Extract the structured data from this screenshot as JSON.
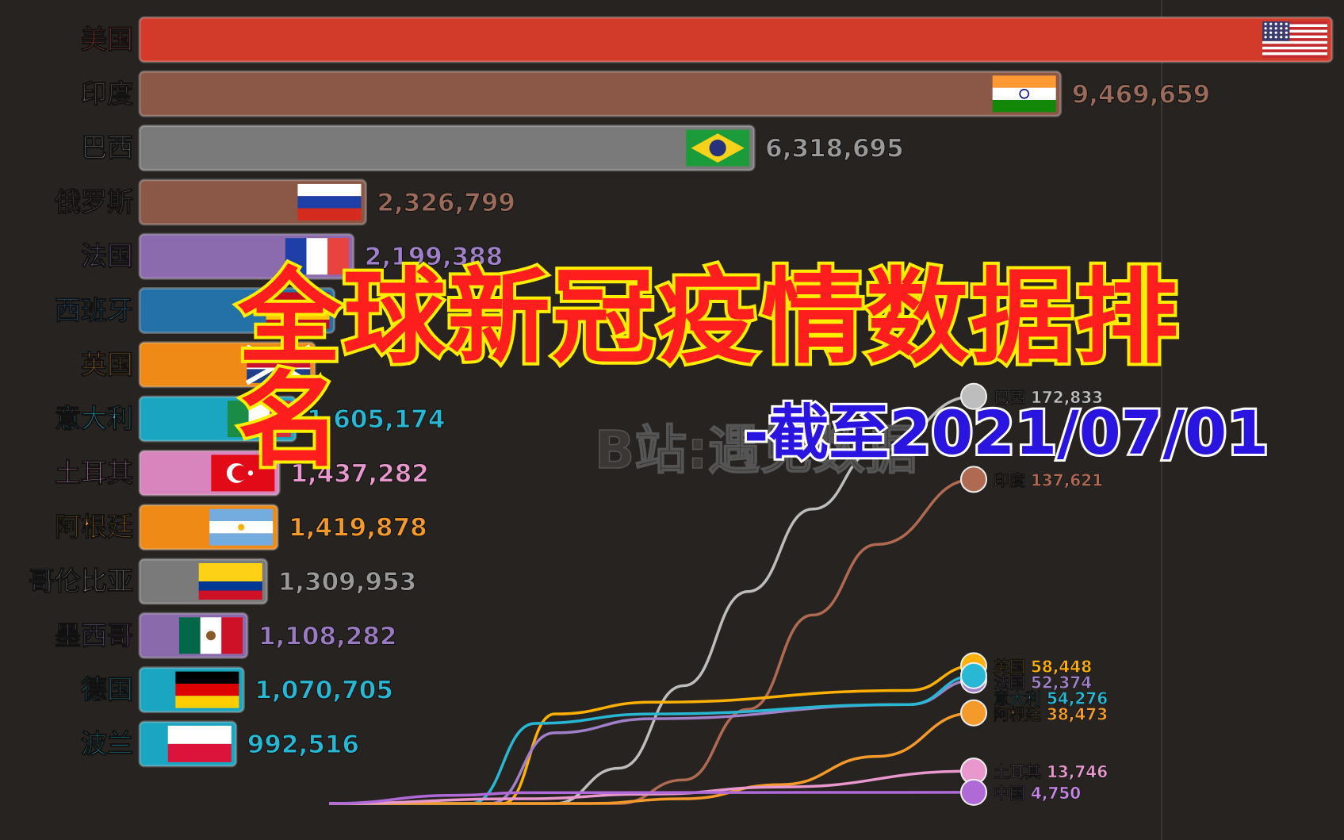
{
  "overlay": {
    "title": "全球新冠疫情数据排名",
    "subtitle": "-截至2021/07/01",
    "watermark": "B站:遇见数据"
  },
  "chart_data": [
    {
      "type": "bar",
      "orientation": "horizontal",
      "title": "",
      "xlabel": "",
      "ylabel": "",
      "categories": [
        "美国",
        "印度",
        "巴西",
        "俄罗斯",
        "法国",
        "西班牙",
        "英国",
        "意大利",
        "土耳其",
        "阿根廷",
        "哥伦比亚",
        "墨西哥",
        "德国",
        "波兰"
      ],
      "values": [
        null,
        9469659,
        6318695,
        2326799,
        2199388,
        null,
        null,
        1605174,
        1437282,
        1419878,
        1309953,
        1108282,
        1070705,
        992516
      ],
      "value_labels": [
        "",
        "9,469,659",
        "6,318,695",
        "2,326,799",
        "2,199,388",
        "",
        "",
        "1,605,174",
        "1,437,282",
        "1,419,878",
        "1,309,953",
        "1,108,282",
        "1,070,705",
        "992,516"
      ],
      "bar_colors": [
        "#d23a2a",
        "#8b5746",
        "#7a7a7a",
        "#8b5746",
        "#8c6aae",
        "#2471a8",
        "#f08a16",
        "#1aa6c1",
        "#d985bd",
        "#f08a16",
        "#7a7a7a",
        "#8a6aaa",
        "#1aa6c1",
        "#1aa6c1"
      ],
      "label_colors": [
        "#e8503c",
        "#9a6a5a",
        "#9a9a9a",
        "#9a6a5a",
        "#a080c8",
        "#3a8ed0",
        "#f39a2a",
        "#28b8d4",
        "#e898cc",
        "#f39a2a",
        "#9a9a9a",
        "#9a7ac0",
        "#28b8d4",
        "#28b8d4"
      ],
      "flags": [
        "us-flag-icon",
        "india-flag-icon",
        "brazil-flag-icon",
        "russia-flag-icon",
        "france-flag-icon",
        "spain-flag-icon",
        "uk-flag-icon",
        "italy-flag-icon",
        "turkey-flag-icon",
        "argentina-flag-icon",
        "colombia-flag-icon",
        "mexico-flag-icon",
        "germany-flag-icon",
        "poland-flag-icon"
      ]
    },
    {
      "type": "line",
      "title": "",
      "xlabel": "",
      "ylabel": "",
      "grid": false,
      "series": [
        {
          "name": "巴西",
          "end_label": "巴西 172,833",
          "color": "#bdbdbd",
          "label_color": "#bdbdbd",
          "x": [
            0,
            0.35,
            0.45,
            0.55,
            0.65,
            0.75,
            0.85,
            1.0
          ],
          "y": [
            0,
            0,
            15000,
            50000,
            90000,
            125000,
            150000,
            172833
          ]
        },
        {
          "name": "印度",
          "end_label": "印度 137,621",
          "color": "#b06a52",
          "label_color": "#b06a52",
          "x": [
            0,
            0.45,
            0.55,
            0.65,
            0.75,
            0.85,
            1.0
          ],
          "y": [
            0,
            0,
            10000,
            40000,
            80000,
            110000,
            137621
          ]
        },
        {
          "name": "英国",
          "end_label": "英国 58,448",
          "color": "#ffb000",
          "label_color": "#ffb000",
          "x": [
            0,
            0.27,
            0.35,
            0.5,
            0.9,
            1.0
          ],
          "y": [
            0,
            0,
            38000,
            43000,
            48000,
            58448
          ]
        },
        {
          "name": "法国",
          "end_label": "法国 52,374",
          "color": "#a080c8",
          "label_color": "#a080c8",
          "x": [
            0,
            0.25,
            0.35,
            0.5,
            0.9,
            1.0
          ],
          "y": [
            0,
            0,
            30000,
            36000,
            42000,
            52374
          ]
        },
        {
          "name": "意大利",
          "end_label": "意大利 54,276",
          "color": "#28b8d4",
          "label_color": "#28b8d4",
          "x": [
            0,
            0.22,
            0.32,
            0.5,
            0.9,
            1.0
          ],
          "y": [
            0,
            0,
            34000,
            38000,
            42000,
            54276
          ]
        },
        {
          "name": "阿根廷",
          "end_label": "阿根廷 38,473",
          "color": "#f39a2a",
          "label_color": "#f39a2a",
          "x": [
            0,
            0.4,
            0.55,
            0.7,
            0.85,
            1.0
          ],
          "y": [
            0,
            0,
            2000,
            8000,
            20000,
            38473
          ]
        },
        {
          "name": "土耳其",
          "end_label": "土耳其 13,746",
          "color": "#e898cc",
          "label_color": "#e898cc",
          "x": [
            0,
            0.3,
            0.5,
            0.7,
            1.0
          ],
          "y": [
            0,
            2000,
            4000,
            7000,
            13746
          ]
        },
        {
          "name": "中国",
          "end_label": "中国 4,750",
          "color": "#b06ad8",
          "label_color": "#c888e8",
          "x": [
            0,
            0.2,
            0.3,
            1.0
          ],
          "y": [
            0,
            3500,
            4600,
            4750
          ]
        }
      ],
      "xlim": [
        0,
        1
      ],
      "ylim": [
        0,
        230000
      ]
    }
  ]
}
